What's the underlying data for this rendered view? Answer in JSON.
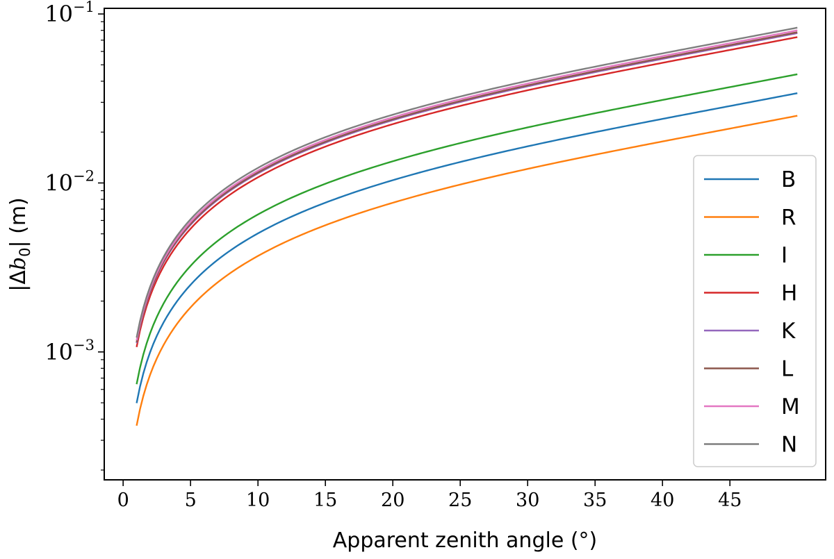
{
  "chart_data": {
    "type": "line",
    "xlabel": "Apparent zenith angle (°)",
    "ylabel_prefix": "|Δ",
    "ylabel_var": "b",
    "ylabel_sub": "0",
    "ylabel_suffix": "| (m)",
    "xlim": [
      -1.4,
      52.1
    ],
    "ylim": [
      0.000175,
      0.108
    ],
    "yscale": "log",
    "x_ticks": [
      0,
      5,
      10,
      15,
      20,
      25,
      30,
      35,
      40,
      45
    ],
    "x_tick_labels": [
      "0",
      "5",
      "10",
      "15",
      "20",
      "25",
      "30",
      "35",
      "40",
      "45"
    ],
    "y_major_ticks": [
      0.001,
      0.01,
      0.1
    ],
    "y_tick_labels": [
      {
        "base": "10",
        "exp": "−3"
      },
      {
        "base": "10",
        "exp": "−2"
      },
      {
        "base": "10",
        "exp": "−1"
      }
    ],
    "grid": false,
    "legend_position": "right",
    "x_range": [
      1,
      50
    ],
    "series": [
      {
        "name": "B",
        "color": "#1f77b4",
        "value_at_1": 0.00033,
        "value_at_50": 0.034
      },
      {
        "name": "R",
        "color": "#ff7f0e",
        "value_at_1": 0.00024,
        "value_at_50": 0.025
      },
      {
        "name": "I",
        "color": "#2ca02c",
        "value_at_1": 0.00042,
        "value_at_50": 0.044
      },
      {
        "name": "H",
        "color": "#d62728",
        "value_at_1": 0.0007,
        "value_at_50": 0.073
      },
      {
        "name": "K",
        "color": "#9467bd",
        "value_at_1": 0.00074,
        "value_at_50": 0.077
      },
      {
        "name": "L",
        "color": "#8c564b",
        "value_at_1": 0.00075,
        "value_at_50": 0.078
      },
      {
        "name": "M",
        "color": "#e377c2",
        "value_at_1": 0.00077,
        "value_at_50": 0.08
      },
      {
        "name": "N",
        "color": "#7f7f7f",
        "value_at_1": 0.0008,
        "value_at_50": 0.083
      }
    ]
  }
}
